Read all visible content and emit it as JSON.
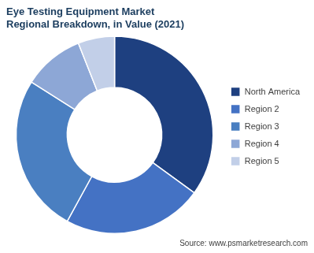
{
  "chart_data": {
    "type": "doughnut",
    "title": "Eye Testing Equipment Market\nRegional Breakdown, in Value (2021)",
    "categories": [
      "North America",
      "Region 2",
      "Region 3",
      "Region 4",
      "Region 5"
    ],
    "values": [
      35,
      23,
      26,
      10,
      6
    ],
    "colors": [
      "#1e4080",
      "#4472c4",
      "#4a7fc1",
      "#8da7d6",
      "#c2cfe8"
    ],
    "annotations": [
      "Source: www.psmarketresearch.com"
    ],
    "legend": "right"
  }
}
